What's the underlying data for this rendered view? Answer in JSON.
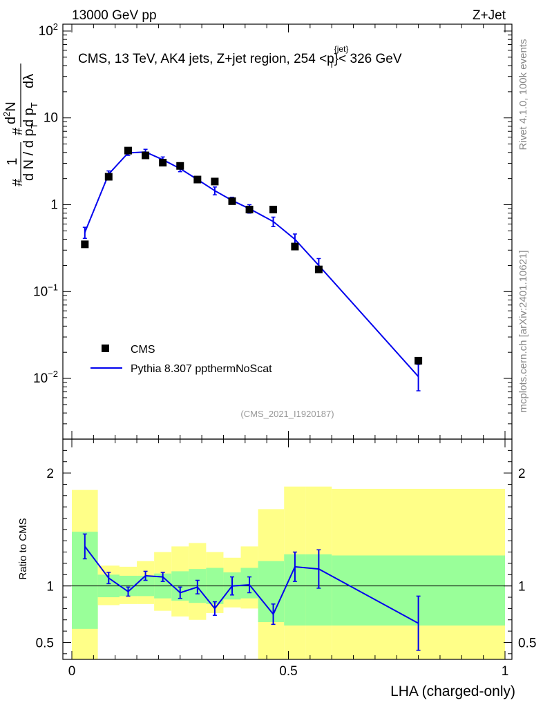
{
  "header": {
    "left_title": "13000 GeV pp",
    "right_title": "Z+Jet"
  },
  "side": {
    "rivet_label": "Rivet 4.1.0,  100k events",
    "mcplots_label": "mcplots.cern.ch [arXiv:2401.10621]"
  },
  "colors": {
    "mc_line": "#0000ee",
    "data_marker": "#000000",
    "band_inner": "#99ff99",
    "band_outer": "#ffff88"
  },
  "chart_data": {
    "type": "line",
    "title": "CMS, 13 TeV, AK4 jets, Z+jet region, 254 <p",
    "title_sup": "{jet}",
    "title_sub": "T",
    "title_end": "}< 326 GeV",
    "analysis_id": "(CMS_2021_I1920187)",
    "xlabel": "LHA (charged-only)",
    "ylabel_ratio": "Ratio to CMS",
    "ylabel_main": {
      "hash": "#",
      "frac_num": "1",
      "frac_den": "d N / d p",
      "frac_den_sub": "T",
      "hash2": "#",
      "d2n": "d",
      "d2n_sup": "2",
      "d2n_end": "N",
      "dpt": "d p",
      "dpt_sub": "T",
      "dlambda": "dλ"
    },
    "xlim": [
      0,
      1
    ],
    "ylim_main": [
      0.002,
      120
    ],
    "ylim_ratio": [
      0.35,
      2.3
    ],
    "x_ticks": [
      "0",
      "0.5",
      "1"
    ],
    "x_tick_values": [
      0,
      0.5,
      1
    ],
    "y_ticks_main": [
      {
        "value": 100,
        "base": "10",
        "exp": "2"
      },
      {
        "value": 10,
        "base": "10",
        "exp": ""
      },
      {
        "value": 1,
        "base": "1",
        "exp": ""
      },
      {
        "value": 0.1,
        "base": "10",
        "exp": "−1"
      },
      {
        "value": 0.01,
        "base": "10",
        "exp": "−2"
      }
    ],
    "y_ticks_ratio": [
      "0.5",
      "1",
      "2"
    ],
    "y_tick_values_ratio": [
      0.5,
      1,
      2
    ],
    "legend": [
      {
        "label": "CMS",
        "kind": "marker"
      },
      {
        "label": "Pythia 8.307 ppthermNoScat",
        "kind": "line"
      }
    ],
    "cms": {
      "name": "CMS",
      "x": [
        0.03,
        0.085,
        0.13,
        0.17,
        0.21,
        0.25,
        0.29,
        0.33,
        0.37,
        0.41,
        0.465,
        0.515,
        0.57,
        0.8
      ],
      "y": [
        0.35,
        2.1,
        4.2,
        3.7,
        3.05,
        2.8,
        1.95,
        1.85,
        1.1,
        0.88,
        0.88,
        0.33,
        0.18,
        0.016
      ]
    },
    "mc": {
      "name": "Pythia 8.307 ppthermNoScat",
      "x": [
        0.03,
        0.085,
        0.13,
        0.17,
        0.21,
        0.25,
        0.29,
        0.33,
        0.37,
        0.41,
        0.465,
        0.515,
        0.57,
        0.8
      ],
      "y": [
        0.48,
        2.25,
        3.95,
        4.05,
        3.3,
        2.6,
        1.95,
        1.45,
        1.12,
        0.9,
        0.64,
        0.4,
        0.2,
        0.0105
      ],
      "yerr_lo": [
        0.07,
        0.2,
        0.25,
        0.3,
        0.25,
        0.2,
        0.15,
        0.15,
        0.1,
        0.1,
        0.08,
        0.06,
        0.03,
        0.0033
      ],
      "yerr_hi": [
        0.07,
        0.2,
        0.25,
        0.3,
        0.25,
        0.2,
        0.15,
        0.15,
        0.1,
        0.1,
        0.08,
        0.06,
        0.04,
        0.004
      ]
    },
    "ratio": {
      "x": [
        0.03,
        0.085,
        0.13,
        0.17,
        0.21,
        0.25,
        0.29,
        0.33,
        0.37,
        0.41,
        0.465,
        0.515,
        0.57,
        0.8
      ],
      "y": [
        1.35,
        1.07,
        0.95,
        1.09,
        1.08,
        0.94,
        0.99,
        0.8,
        1.0,
        1.01,
        0.75,
        1.17,
        1.15,
        0.67
      ],
      "err": [
        0.11,
        0.05,
        0.04,
        0.04,
        0.04,
        0.05,
        0.06,
        0.06,
        0.08,
        0.07,
        0.09,
        0.13,
        0.17,
        0.24
      ]
    },
    "bands": {
      "edges": [
        0.0,
        0.06,
        0.11,
        0.15,
        0.19,
        0.23,
        0.27,
        0.31,
        0.35,
        0.39,
        0.43,
        0.49,
        0.54,
        0.6,
        1.0
      ],
      "inner_lo": [
        0.62,
        0.9,
        0.91,
        0.91,
        0.89,
        0.87,
        0.85,
        0.84,
        0.88,
        0.89,
        0.68,
        0.65,
        0.65,
        0.65
      ],
      "inner_hi": [
        1.48,
        1.1,
        1.09,
        1.09,
        1.11,
        1.13,
        1.15,
        1.16,
        1.12,
        1.16,
        1.22,
        1.28,
        1.28,
        1.27
      ],
      "outer_lo": [
        0.35,
        0.83,
        0.84,
        0.84,
        0.78,
        0.73,
        0.7,
        0.76,
        0.81,
        0.8,
        0.35,
        0.35,
        0.35,
        0.35
      ],
      "outer_hi": [
        1.85,
        1.18,
        1.17,
        1.22,
        1.3,
        1.35,
        1.38,
        1.3,
        1.25,
        1.35,
        1.68,
        1.88,
        1.88,
        1.86
      ]
    }
  }
}
